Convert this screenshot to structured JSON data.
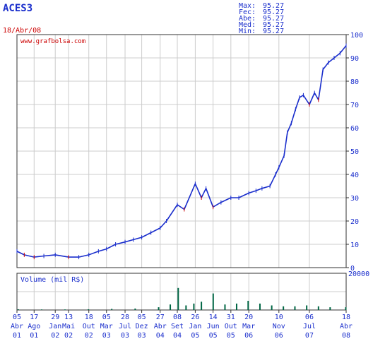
{
  "ticker": "ACES3",
  "date": "18/Abr/08",
  "watermark": "www.grafbolsa.com",
  "stats": [
    {
      "label": "Max:",
      "value": "95.27"
    },
    {
      "label": "Fec:",
      "value": "95.27"
    },
    {
      "label": "Abe:",
      "value": "95.27"
    },
    {
      "label": "Med:",
      "value": "95.27"
    },
    {
      "label": "Min:",
      "value": "95.27"
    }
  ],
  "colors": {
    "price_series": "#1a2ecc",
    "price_series_down": "#cc0000",
    "volume_bars": "#006644",
    "text": "#1a2ecc",
    "date": "#cc0000",
    "grid": "#cccccc",
    "frame": "#333333"
  },
  "chart_data": [
    {
      "type": "line",
      "title": "ACES3",
      "ylim": [
        0,
        100
      ],
      "y_ticks": [
        "0",
        "10",
        "20",
        "30",
        "40",
        "50",
        "60",
        "70",
        "80",
        "90",
        "100"
      ],
      "x_ticks": [
        {
          "day": "05",
          "month": "Abr",
          "year": "01"
        },
        {
          "day": "17",
          "month": "Ago",
          "year": "01"
        },
        {
          "day": "29",
          "month": "Jan",
          "year": "02"
        },
        {
          "day": "13",
          "month": "Mai",
          "year": "02"
        },
        {
          "day": "18",
          "month": "Out",
          "year": "02"
        },
        {
          "day": "05",
          "month": "Mar",
          "year": "03"
        },
        {
          "day": "28",
          "month": "Jul",
          "year": "03"
        },
        {
          "day": "05",
          "month": "Dez",
          "year": "03"
        },
        {
          "day": "27",
          "month": "Abr",
          "year": "04"
        },
        {
          "day": "08",
          "month": "Set",
          "year": "04"
        },
        {
          "day": "26",
          "month": "Jan",
          "year": "05"
        },
        {
          "day": "14",
          "month": "Jun",
          "year": "05"
        },
        {
          "day": "31",
          "month": "Out",
          "year": "05"
        },
        {
          "day": "20",
          "month": "Mar",
          "year": "06"
        },
        {
          "day": "10",
          "month": "Nov",
          "year": "06"
        },
        {
          "day": "06",
          "month": "Jul",
          "year": "07"
        },
        {
          "day": "18",
          "month": "Abr",
          "year": "08"
        }
      ],
      "series": [
        {
          "x": [
            "2001-04-05",
            "2001-06-01",
            "2001-08-17",
            "2001-11-01",
            "2002-01-29",
            "2002-05-13",
            "2002-08-01",
            "2002-10-18",
            "2003-01-01",
            "2003-03-05",
            "2003-05-15",
            "2003-07-28",
            "2003-10-01",
            "2003-12-05",
            "2004-02-15",
            "2004-04-27",
            "2004-06-15",
            "2004-09-08",
            "2004-11-01",
            "2005-01-26",
            "2005-03-15",
            "2005-04-20",
            "2005-06-14",
            "2005-08-15",
            "2005-10-31",
            "2006-01-01",
            "2006-03-20",
            "2006-05-15",
            "2006-07-01",
            "2006-09-01",
            "2006-10-15",
            "2006-11-10",
            "2006-12-20",
            "2007-01-15",
            "2007-02-15",
            "2007-03-20",
            "2007-04-20",
            "2007-05-20",
            "2007-07-06",
            "2007-08-15",
            "2007-09-15",
            "2007-10-20",
            "2007-12-01",
            "2008-01-15",
            "2008-03-01",
            "2008-04-18"
          ],
          "y": [
            7,
            5.5,
            4.5,
            5,
            5.5,
            4.5,
            4.5,
            5.5,
            7,
            8,
            10,
            11,
            12,
            13,
            15,
            17,
            20,
            27,
            25,
            36,
            30,
            34,
            26,
            28,
            30,
            30,
            32,
            33,
            34,
            35,
            40,
            43,
            48,
            58,
            62,
            68,
            73,
            74,
            70,
            75,
            72,
            85,
            88,
            90,
            92,
            95.27
          ]
        }
      ]
    },
    {
      "type": "bar",
      "title": "Volume (mil R$)",
      "ylim": [
        0,
        20000
      ],
      "y_ticks": [
        "20000"
      ],
      "series": [
        {
          "x": [
            "2001-04",
            "2001-10",
            "2002-04",
            "2002-10",
            "2003-04",
            "2003-10",
            "2004-04",
            "2004-07",
            "2004-09",
            "2004-11",
            "2005-01",
            "2005-03",
            "2005-06",
            "2005-09",
            "2005-12",
            "2006-03",
            "2006-06",
            "2006-09",
            "2006-12",
            "2007-03",
            "2007-06",
            "2007-09",
            "2007-12",
            "2008-04"
          ],
          "y": [
            400,
            300,
            300,
            400,
            600,
            800,
            1500,
            3000,
            12000,
            2500,
            3500,
            4500,
            9000,
            3000,
            3500,
            5000,
            3500,
            2500,
            2000,
            2000,
            2500,
            2000,
            1500,
            1500
          ]
        }
      ]
    }
  ]
}
